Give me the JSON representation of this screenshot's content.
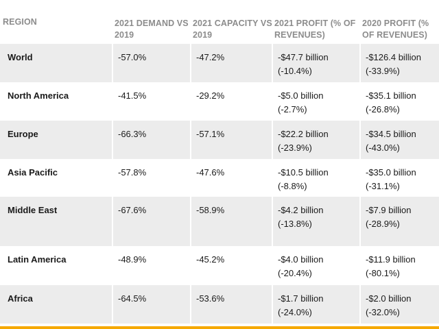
{
  "table": {
    "headers": [
      "REGION",
      "2021 DEMAND VS 2019",
      "2021 CAPACITY VS 2019",
      "2021 PROFIT (% OF REVENUES)",
      "2020 PROFIT (% OF REVENUES)"
    ],
    "rows": [
      {
        "region": "World",
        "demand": "-57.0%",
        "capacity": "-47.2%",
        "profit2021": "-$47.7 billion",
        "profit2021_pct": "(-10.4%)",
        "profit2020": "-$126.4 billion",
        "profit2020_pct": "(-33.9%)"
      },
      {
        "region": "North America",
        "demand": "-41.5%",
        "capacity": "-29.2%",
        "profit2021": "-$5.0 billion",
        "profit2021_pct": "(-2.7%)",
        "profit2020": "-$35.1 billion",
        "profit2020_pct": "(-26.8%)"
      },
      {
        "region": "Europe",
        "demand": "-66.3%",
        "capacity": "-57.1%",
        "profit2021": "-$22.2 billion",
        "profit2021_pct": "(-23.9%)",
        "profit2020": "-$34.5 billion",
        "profit2020_pct": "(-43.0%)"
      },
      {
        "region": "Asia Pacific",
        "demand": "-57.8%",
        "capacity": "-47.6%",
        "profit2021": "-$10.5 billion",
        "profit2021_pct": "(-8.8%)",
        "profit2020": "-$35.0 billion",
        "profit2020_pct": "(-31.1%)"
      },
      {
        "region": "Middle East",
        "demand": "-67.6%",
        "capacity": "-58.9%",
        "profit2021": "-$4.2 billion",
        "profit2021_pct": "(-13.8%)",
        "profit2020": "-$7.9 billion",
        "profit2020_pct": "(-28.9%)"
      },
      {
        "region": "Latin America",
        "demand": "-48.9%",
        "capacity": "-45.2%",
        "profit2021": "-$4.0 billion",
        "profit2021_pct": "(-20.4%)",
        "profit2020": "-$11.9 billion",
        "profit2020_pct": "(-80.1%)"
      },
      {
        "region": "Africa",
        "demand": "-64.5%",
        "capacity": "-53.6%",
        "profit2021": "-$1.7 billion",
        "profit2021_pct": "(-24.0%)",
        "profit2020": "-$2.0 billion",
        "profit2020_pct": "(-32.0%)"
      }
    ]
  },
  "colors": {
    "header_text": "#8c8c8c",
    "row_shade": "#ececec",
    "accent_bar": "#f5a800"
  }
}
